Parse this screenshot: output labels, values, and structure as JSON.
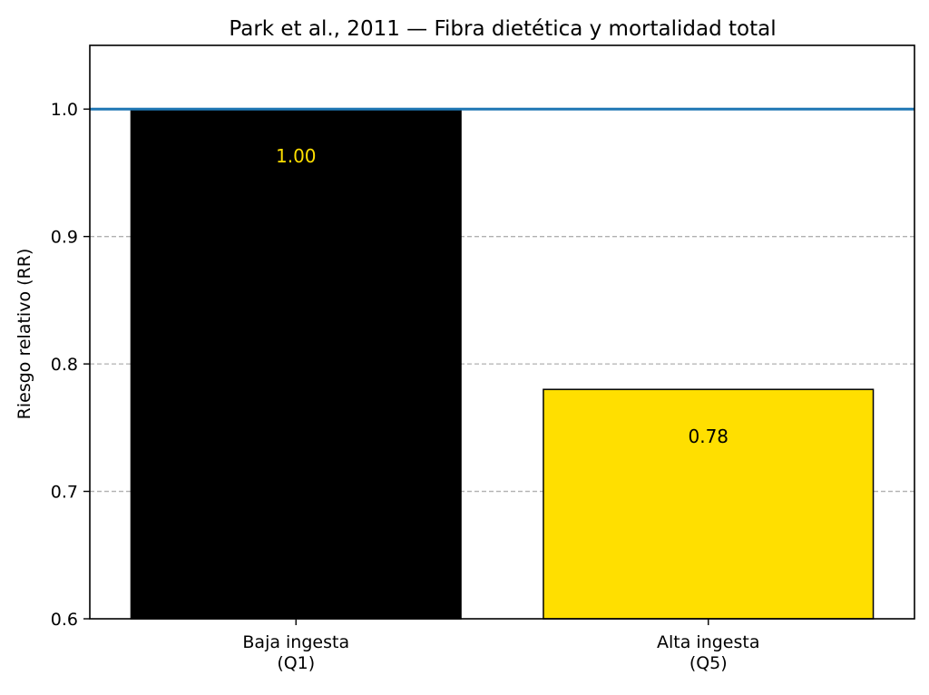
{
  "chart_data": {
    "type": "bar",
    "title": "Park et al., 2011 — Fibra dietética y mortalidad total",
    "xlabel": "",
    "ylabel": "Riesgo relativo (RR)",
    "categories": [
      "Baja ingesta\n(Q1)",
      "Alta ingesta\n(Q5)"
    ],
    "values": [
      1.0,
      0.78
    ],
    "value_labels": [
      "1.00",
      "0.78"
    ],
    "bar_colors": [
      "#000000",
      "#ffdf00"
    ],
    "value_label_colors": [
      "#ffdf00",
      "#000000"
    ],
    "ylim": [
      0.6,
      1.05
    ],
    "yticks": [
      0.6,
      0.7,
      0.8,
      0.9,
      1.0
    ],
    "ytick_labels": [
      "0.6",
      "0.7",
      "0.8",
      "0.9",
      "1.0"
    ],
    "reference_line": {
      "y": 1.0,
      "color": "#1f77b4"
    },
    "grid": {
      "axis": "y",
      "style": "dashed",
      "color": "#b0b0b0"
    },
    "legend": null
  }
}
